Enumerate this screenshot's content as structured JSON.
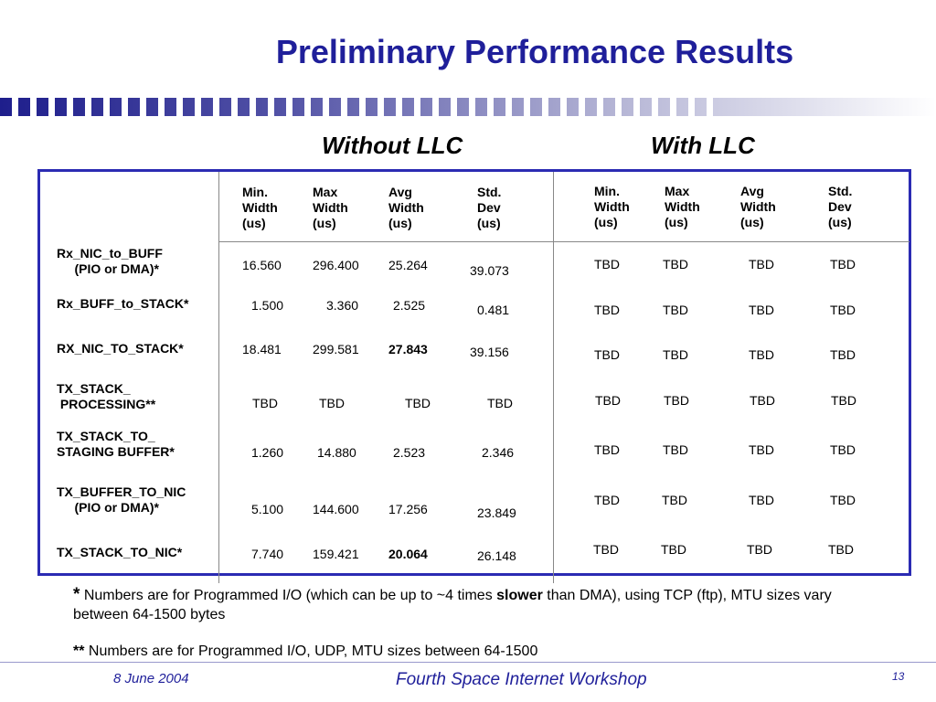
{
  "title": "Preliminary Performance Results",
  "section_without": "Without LLC",
  "section_with": "With LLC",
  "headers": [
    "Min.\nWidth\n(us)",
    "Max\nWidth\n(us)",
    "Avg\nWidth\n(us)",
    "Std.\nDev\n(us)"
  ],
  "rows": [
    {
      "label": "Rx_NIC_to_BUFF\n     (PIO or DMA)*",
      "without": [
        "16.560",
        "296.400",
        "25.264",
        "39.073"
      ],
      "with": [
        "TBD",
        "TBD",
        "TBD",
        "TBD"
      ]
    },
    {
      "label": "Rx_BUFF_to_STACK*",
      "without": [
        "1.500",
        "3.360",
        "2.525",
        "0.481"
      ],
      "with": [
        "TBD",
        "TBD",
        "TBD",
        "TBD"
      ]
    },
    {
      "label": "RX_NIC_TO_STACK*",
      "without": [
        "18.481",
        "299.581",
        "27.843",
        "39.156"
      ],
      "with": [
        "TBD",
        "TBD",
        "TBD",
        "TBD"
      ]
    },
    {
      "label": "TX_STACK_\n PROCESSING**",
      "without": [
        "TBD",
        "TBD",
        "TBD",
        "TBD"
      ],
      "with": [
        "TBD",
        "TBD",
        "TBD",
        "TBD"
      ]
    },
    {
      "label": "TX_STACK_TO_\nSTAGING BUFFER*",
      "without": [
        "1.260",
        "14.880",
        "2.523",
        "2.346"
      ],
      "with": [
        "TBD",
        "TBD",
        "TBD",
        "TBD"
      ]
    },
    {
      "label": "TX_BUFFER_TO_NIC\n     (PIO or DMA)*",
      "without": [
        "5.100",
        "144.600",
        "17.256",
        "23.849"
      ],
      "with": [
        "TBD",
        "TBD",
        "TBD",
        "TBD"
      ]
    },
    {
      "label": "TX_STACK_TO_NIC*",
      "without": [
        "7.740",
        "159.421",
        "20.064",
        "26.148"
      ],
      "with": [
        "TBD",
        "TBD",
        "TBD",
        "TBD"
      ]
    }
  ],
  "notes": {
    "note1_mark": "*",
    "note1_part1": " Numbers are for Programmed I/O (which can be up to ~4 times ",
    "note1_bold": "slower",
    "note1_part2": "  than DMA), using TCP (ftp), MTU sizes vary between 64-1500 bytes",
    "note2_mark": "**",
    "note2_text": " Numbers are for Programmed I/O, UDP, MTU sizes between 64-1500"
  },
  "footer": {
    "date": "8 June 2004",
    "event": "Fourth Space Internet Workshop",
    "page": "13"
  }
}
